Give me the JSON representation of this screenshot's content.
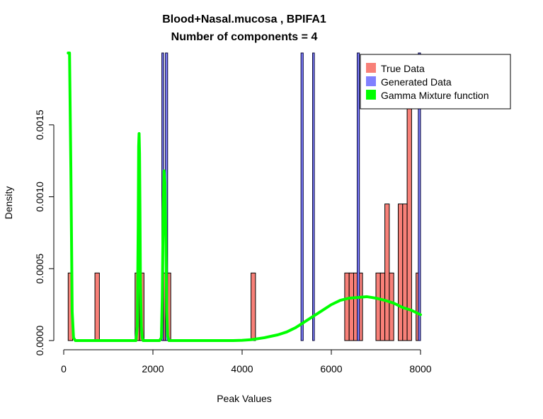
{
  "chart_data": {
    "type": "bar",
    "title": "Blood+Nasal.mucosa , BPIFA1",
    "subtitle": "Number of components =  4",
    "xlabel": "Peak Values",
    "ylabel": "Density",
    "xlim": [
      0,
      8000
    ],
    "ylim": [
      0,
      0.002
    ],
    "x_ticks": [
      0,
      2000,
      4000,
      6000,
      8000
    ],
    "y_ticks": [
      0.0,
      0.0005,
      0.001,
      0.0015
    ],
    "x_tick_labels": [
      "0",
      "2000",
      "4000",
      "6000",
      "8000"
    ],
    "y_tick_labels": [
      "0.0000",
      "0.0005",
      "0.0010",
      "0.0015"
    ],
    "grid": false,
    "legend_position": "top-right",
    "bin_width": 100,
    "legend": [
      {
        "label": "True Data",
        "color": "#F88078"
      },
      {
        "label": "Generated Data",
        "color": "#8080FF"
      },
      {
        "label": "Gamma Mixture function",
        "color": "#00FF00"
      }
    ],
    "true_data": [
      {
        "x0": 100,
        "x1": 200,
        "y": 0.00047
      },
      {
        "x0": 700,
        "x1": 800,
        "y": 0.00047
      },
      {
        "x0": 1600,
        "x1": 1700,
        "y": 0.00047
      },
      {
        "x0": 1700,
        "x1": 1800,
        "y": 0.00047
      },
      {
        "x0": 2200,
        "x1": 2300,
        "y": 0.00047
      },
      {
        "x0": 2300,
        "x1": 2400,
        "y": 0.00047
      },
      {
        "x0": 4200,
        "x1": 4300,
        "y": 0.00047
      },
      {
        "x0": 6300,
        "x1": 6400,
        "y": 0.00047
      },
      {
        "x0": 6400,
        "x1": 6500,
        "y": 0.00047
      },
      {
        "x0": 6500,
        "x1": 6600,
        "y": 0.00047
      },
      {
        "x0": 6600,
        "x1": 6700,
        "y": 0.00047
      },
      {
        "x0": 7000,
        "x1": 7100,
        "y": 0.00047
      },
      {
        "x0": 7100,
        "x1": 7200,
        "y": 0.00047
      },
      {
        "x0": 7200,
        "x1": 7300,
        "y": 0.00095
      },
      {
        "x0": 7300,
        "x1": 7400,
        "y": 0.00047
      },
      {
        "x0": 7500,
        "x1": 7600,
        "y": 0.00095
      },
      {
        "x0": 7600,
        "x1": 7700,
        "y": 0.00095
      },
      {
        "x0": 7700,
        "x1": 7800,
        "y": 0.0019
      },
      {
        "x0": 7900,
        "x1": 8000,
        "y": 0.00047
      }
    ],
    "generated_data": [
      {
        "x0": 2200,
        "x1": 2240,
        "y": 0.5
      },
      {
        "x0": 2280,
        "x1": 2330,
        "y": 0.5
      },
      {
        "x0": 5320,
        "x1": 5370,
        "y": 0.5
      },
      {
        "x0": 5580,
        "x1": 5620,
        "y": 0.5
      },
      {
        "x0": 6580,
        "x1": 6630,
        "y": 0.5
      },
      {
        "x0": 7950,
        "x1": 8000,
        "y": 0.5
      }
    ],
    "gamma_mixture": {
      "x": [
        100,
        130,
        160,
        190,
        220,
        260,
        300,
        500,
        800,
        1200,
        1550,
        1620,
        1650,
        1670,
        1680,
        1690,
        1700,
        1710,
        1720,
        1740,
        1760,
        1780,
        1800,
        2000,
        2150,
        2190,
        2210,
        2230,
        2250,
        2270,
        2290,
        2310,
        2330,
        2360,
        2400,
        3000,
        3500,
        3800,
        4000,
        4200,
        4500,
        4800,
        5000,
        5200,
        5400,
        5600,
        5800,
        6000,
        6200,
        6400,
        6600,
        6800,
        6900,
        7000,
        7200,
        7400,
        7600,
        7800,
        8000
      ],
      "y": [
        0.002,
        0.002,
        0.0012,
        0.0002,
        2e-05,
        0,
        0,
        0,
        0,
        0,
        0,
        0,
        0.0001,
        0.0008,
        0.00135,
        0.00144,
        0.0013,
        0.0009,
        0.0004,
        0.0001,
        2e-05,
        0,
        0,
        0,
        0,
        2e-05,
        0.0003,
        0.0009,
        0.00118,
        0.0011,
        0.0007,
        0.0002,
        3e-05,
        0,
        0,
        0,
        0,
        0,
        2e-06,
        6e-06,
        2e-05,
        4e-05,
        6e-05,
        9e-05,
        0.00013,
        0.00017,
        0.00021,
        0.00025,
        0.00028,
        0.000295,
        0.0003,
        0.000305,
        0.0003,
        0.000295,
        0.00028,
        0.00026,
        0.00023,
        0.00021,
        0.00018
      ]
    }
  }
}
